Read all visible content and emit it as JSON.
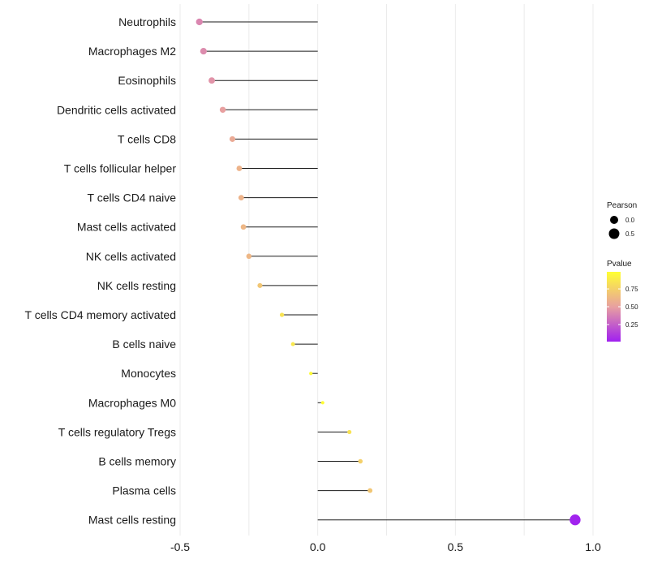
{
  "chart_data": {
    "type": "lollipop",
    "title": "",
    "xlabel": "",
    "ylabel": "",
    "xlim": [
      -0.5,
      1.0
    ],
    "xticks": [
      -0.5,
      0.0,
      0.5,
      1.0
    ],
    "xtick_labels": [
      "-0.5",
      "0.0",
      "0.5",
      "1.0"
    ],
    "grid": "vertical",
    "categories": [
      "Neutrophils",
      "Macrophages M2",
      "Eosinophils",
      "Dendritic cells activated",
      "T cells CD8",
      "T cells follicular helper",
      "T cells CD4 naive",
      "Mast cells activated",
      "NK cells activated",
      "NK cells resting",
      "T cells CD4 memory activated",
      "B cells naive",
      "Monocytes",
      "Macrophages M0",
      "T cells regulatory  Tregs",
      "B cells memory",
      "Plasma cells",
      "Mast cells resting"
    ],
    "values": [
      -0.43,
      -0.415,
      -0.385,
      -0.345,
      -0.31,
      -0.285,
      -0.278,
      -0.27,
      -0.25,
      -0.21,
      -0.13,
      -0.09,
      -0.025,
      0.018,
      0.115,
      0.155,
      0.19,
      0.935
    ],
    "pvalues": [
      0.4,
      0.42,
      0.45,
      0.5,
      0.55,
      0.6,
      0.6,
      0.62,
      0.62,
      0.7,
      0.85,
      0.88,
      0.98,
      0.99,
      0.85,
      0.75,
      0.7,
      0.01
    ],
    "size_legend": {
      "title": "Pearson",
      "entries": [
        {
          "label": "0.0",
          "value": 0.0
        },
        {
          "label": "0.5",
          "value": 0.5
        }
      ]
    },
    "color_legend": {
      "title": "Pvalue",
      "ticks": [
        {
          "label": "0.75",
          "value": 0.75
        },
        {
          "label": "0.50",
          "value": 0.5
        },
        {
          "label": "0.25",
          "value": 0.25
        }
      ],
      "range": [
        0.01,
        0.99
      ],
      "low_color": "#a020f0",
      "mid_color": "#e8a0a0",
      "high_color": "#ffff33"
    }
  }
}
